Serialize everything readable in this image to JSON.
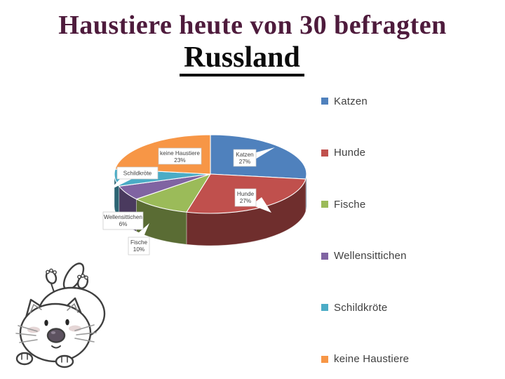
{
  "slide": {
    "title": "Haustiere heute von 30 befragten",
    "subtitle": "Russland",
    "title_color": "#4E1B3C",
    "subtitle_color": "#0B0B0B",
    "background_color": "#FFFFFF"
  },
  "chart_data": {
    "type": "pie",
    "style": "3d",
    "title": "",
    "legend_position": "right",
    "start_angle_deg": 0,
    "direction": "clockwise",
    "categories": [
      "Katzen",
      "Hunde",
      "Fische",
      "Wellensittichen",
      "Schildkröte",
      "keine Haustiere"
    ],
    "values": [
      27,
      27,
      10,
      6,
      7,
      23
    ],
    "percent_labels": [
      "27%",
      "27%",
      "10%",
      "6%",
      "",
      "23%"
    ],
    "colors": [
      "#4F81BD",
      "#C0504D",
      "#9BBB59",
      "#8064A2",
      "#4BACC6",
      "#F79646"
    ],
    "legend_text_color": "#3F3F3F",
    "callout_text_color": "#404040"
  }
}
